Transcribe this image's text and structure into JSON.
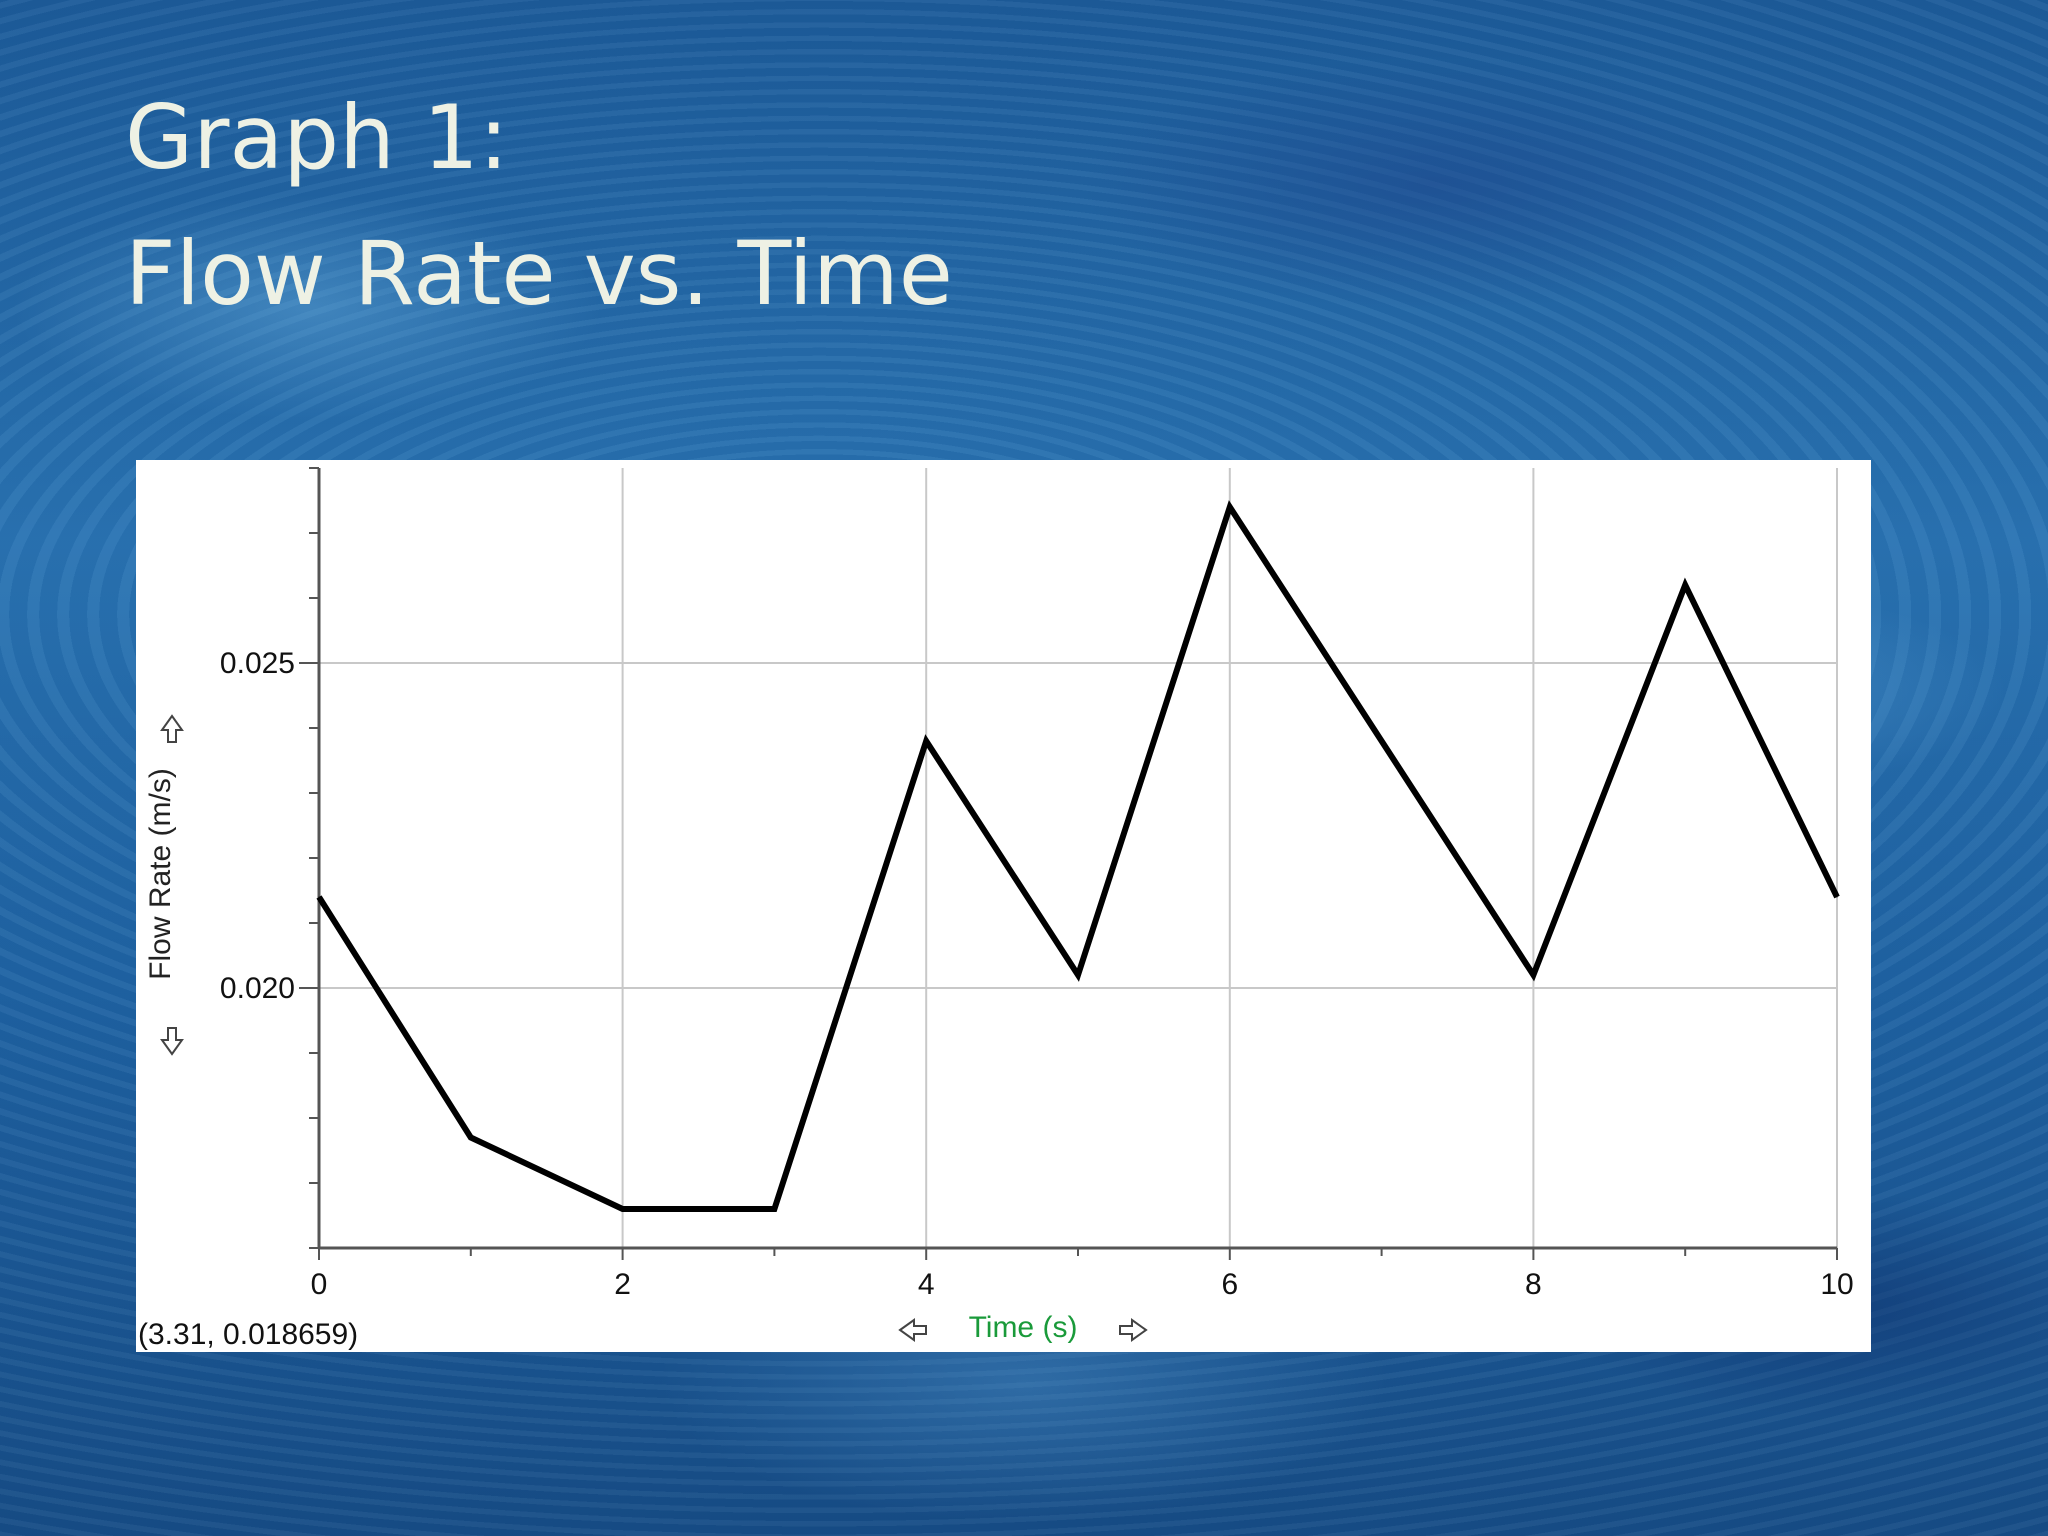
{
  "slide": {
    "title_line1": "Graph 1:",
    "title_line2": "Flow Rate vs. Time"
  },
  "chart_data": {
    "type": "line",
    "title": "",
    "xlabel": "Time (s)",
    "ylabel": "Flow Rate (m/s)",
    "xlim": [
      0,
      10
    ],
    "ylim": [
      0.016,
      0.028
    ],
    "x_ticks": [
      "0",
      "2",
      "4",
      "6",
      "8",
      "10"
    ],
    "y_ticks": [
      "0.020",
      "0.025"
    ],
    "grid": true,
    "cursor_readout": "(3.31, 0.018659)",
    "series": [
      {
        "x": [
          0,
          1,
          2,
          3,
          4,
          5,
          6,
          7,
          8,
          9,
          10
        ],
        "values": [
          0.0214,
          0.0177,
          0.0166,
          0.0166,
          0.0238,
          0.0202,
          0.0274,
          0.0238,
          0.0202,
          0.0262,
          0.0214
        ]
      }
    ],
    "colors": {
      "line": "#000000",
      "grid": "#c8c8c8",
      "xlabel": "#1a9a3a",
      "axis": "#555555"
    }
  }
}
